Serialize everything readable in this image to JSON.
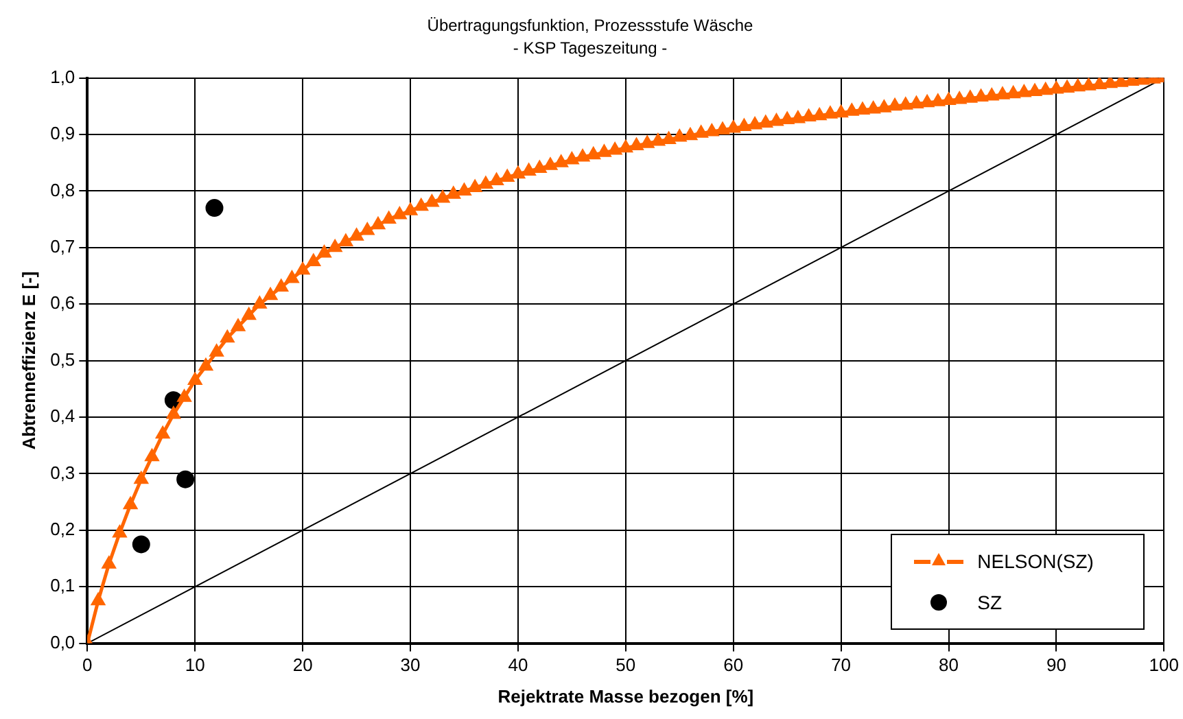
{
  "chart_data": {
    "type": "line",
    "title": "Übertragungsfunktion, Prozessstufe Wäsche",
    "subtitle": "- KSP Tageszeitung -",
    "xlabel": "Rejektrate Masse bezogen [%]",
    "ylabel": "Abtrenneffizienz E [-]",
    "xlim": [
      0,
      100
    ],
    "xticks": [
      0,
      10,
      20,
      30,
      40,
      50,
      60,
      70,
      80,
      90,
      100
    ],
    "ylim": [
      0,
      1
    ],
    "yticks": [
      {
        "value": 0,
        "label": "0,0"
      },
      {
        "value": 0.1,
        "label": "0,1"
      },
      {
        "value": 0.2,
        "label": "0,2"
      },
      {
        "value": 0.3,
        "label": "0,3"
      },
      {
        "value": 0.4,
        "label": "0,4"
      },
      {
        "value": 0.5,
        "label": "0,5"
      },
      {
        "value": 0.6,
        "label": "0,6"
      },
      {
        "value": 0.7,
        "label": "0,7"
      },
      {
        "value": 0.8,
        "label": "0,8"
      },
      {
        "value": 0.9,
        "label": "0,9"
      },
      {
        "value": 1,
        "label": "1,0"
      }
    ],
    "grid": true,
    "legend": "bottom right",
    "line_style": "solid",
    "series": [
      {
        "name": "NELSON(SZ)",
        "color": "#ff6600",
        "marker": "triangle",
        "x": [
          0,
          1,
          2,
          3,
          4,
          5,
          6,
          7,
          8,
          9,
          10,
          11,
          12,
          13,
          14,
          15,
          16,
          17,
          18,
          19,
          20,
          21,
          22,
          23,
          24,
          25,
          26,
          27,
          28,
          29,
          30,
          31,
          32,
          33,
          34,
          35,
          36,
          37,
          38,
          39,
          40,
          41,
          42,
          43,
          44,
          45,
          46,
          47,
          48,
          49,
          50,
          51,
          52,
          53,
          54,
          55,
          56,
          57,
          58,
          59,
          60,
          61,
          62,
          63,
          64,
          65,
          66,
          67,
          68,
          69,
          70,
          71,
          72,
          73,
          74,
          75,
          76,
          77,
          78,
          79,
          80,
          81,
          82,
          83,
          84,
          85,
          86,
          87,
          88,
          89,
          90,
          91,
          92,
          93,
          94,
          95,
          96,
          97,
          98,
          99,
          100
        ],
        "values": [
          0,
          0.075,
          0.14,
          0.195,
          0.245,
          0.29,
          0.33,
          0.37,
          0.405,
          0.435,
          0.465,
          0.49,
          0.515,
          0.54,
          0.56,
          0.58,
          0.6,
          0.615,
          0.63,
          0.645,
          0.66,
          0.675,
          0.69,
          0.7,
          0.71,
          0.72,
          0.73,
          0.74,
          0.75,
          0.758,
          0.765,
          0.773,
          0.78,
          0.787,
          0.794,
          0.8,
          0.806,
          0.812,
          0.818,
          0.824,
          0.83,
          0.835,
          0.84,
          0.845,
          0.85,
          0.855,
          0.86,
          0.864,
          0.868,
          0.872,
          0.876,
          0.88,
          0.884,
          0.888,
          0.891,
          0.895,
          0.898,
          0.902,
          0.905,
          0.908,
          0.911,
          0.914,
          0.917,
          0.92,
          0.923,
          0.926,
          0.928,
          0.931,
          0.933,
          0.936,
          0.938,
          0.941,
          0.943,
          0.945,
          0.947,
          0.95,
          0.952,
          0.954,
          0.956,
          0.958,
          0.96,
          0.962,
          0.964,
          0.966,
          0.968,
          0.97,
          0.972,
          0.974,
          0.976,
          0.978,
          0.98,
          0.982,
          0.984,
          0.986,
          0.988,
          0.99,
          0.992,
          0.994,
          0.996,
          0.998,
          1
        ]
      },
      {
        "name": "SZ",
        "type": "scatter",
        "color": "#000000",
        "marker": "circle",
        "x": [
          5,
          8,
          9.1,
          11.8
        ],
        "values": [
          0.175,
          0.43,
          0.29,
          0.77
        ]
      },
      {
        "color": "#000000",
        "marker": "none",
        "x": [
          0,
          100
        ],
        "values": [
          0,
          1
        ]
      }
    ]
  }
}
